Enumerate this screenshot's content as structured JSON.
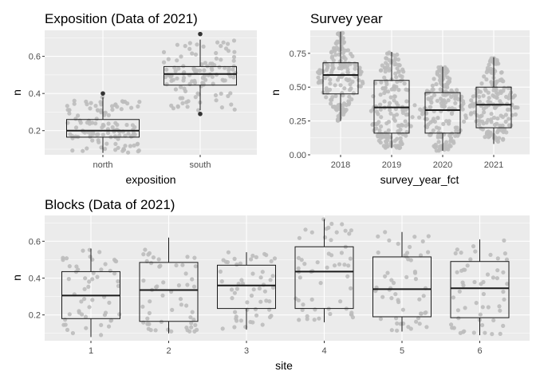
{
  "chart_data": [
    {
      "type": "boxplot",
      "title": "Exposition (Data of 2021)",
      "xlabel": "exposition",
      "ylabel": "n",
      "categories": [
        "north",
        "south"
      ],
      "ylim": [
        0.07,
        0.74
      ],
      "yticks": [
        0.2,
        0.4,
        0.6
      ],
      "yticklabels": [
        "0.2",
        "0.4",
        "0.6"
      ],
      "grid": true,
      "points": "jittered",
      "boxes": [
        {
          "category": "north",
          "min": 0.08,
          "q1": 0.165,
          "median": 0.2,
          "q3": 0.26,
          "max": 0.38,
          "outliers": [
            0.4
          ]
        },
        {
          "category": "south",
          "min": 0.31,
          "q1": 0.445,
          "median": 0.505,
          "q3": 0.545,
          "max": 0.69,
          "outliers": [
            0.29,
            0.72
          ]
        }
      ]
    },
    {
      "type": "violin-boxplot",
      "title": "Survey year",
      "xlabel": "survey_year_fct",
      "ylabel": "n",
      "categories": [
        "2018",
        "2019",
        "2020",
        "2021"
      ],
      "ylim": [
        0.0,
        0.92
      ],
      "yticks": [
        0.0,
        0.25,
        0.5,
        0.75
      ],
      "yticklabels": [
        "0.00",
        "0.25",
        "0.50",
        "0.75"
      ],
      "grid": true,
      "points": "beeswarm",
      "boxes": [
        {
          "category": "2018",
          "min": 0.25,
          "q1": 0.45,
          "median": 0.59,
          "q3": 0.68,
          "max": 0.91,
          "outliers": []
        },
        {
          "category": "2019",
          "min": 0.05,
          "q1": 0.16,
          "median": 0.35,
          "q3": 0.55,
          "max": 0.76,
          "outliers": []
        },
        {
          "category": "2020",
          "min": 0.03,
          "q1": 0.16,
          "median": 0.33,
          "q3": 0.46,
          "max": 0.65,
          "outliers": []
        },
        {
          "category": "2021",
          "min": 0.08,
          "q1": 0.2,
          "median": 0.37,
          "q3": 0.5,
          "max": 0.72,
          "outliers": []
        }
      ]
    },
    {
      "type": "boxplot",
      "title": "Blocks (Data of 2021)",
      "xlabel": "site",
      "ylabel": "n",
      "categories": [
        "1",
        "2",
        "3",
        "4",
        "5",
        "6"
      ],
      "ylim": [
        0.06,
        0.74
      ],
      "yticks": [
        0.2,
        0.4,
        0.6
      ],
      "yticklabels": [
        "0.2",
        "0.4",
        "0.6"
      ],
      "grid": true,
      "points": "jittered",
      "boxes": [
        {
          "category": "1",
          "min": 0.08,
          "q1": 0.18,
          "median": 0.305,
          "q3": 0.435,
          "max": 0.56,
          "outliers": []
        },
        {
          "category": "2",
          "min": 0.1,
          "q1": 0.165,
          "median": 0.335,
          "q3": 0.485,
          "max": 0.62,
          "outliers": []
        },
        {
          "category": "3",
          "min": 0.12,
          "q1": 0.235,
          "median": 0.36,
          "q3": 0.47,
          "max": 0.54,
          "outliers": []
        },
        {
          "category": "4",
          "min": 0.16,
          "q1": 0.235,
          "median": 0.435,
          "q3": 0.57,
          "max": 0.72,
          "outliers": []
        },
        {
          "category": "5",
          "min": 0.11,
          "q1": 0.19,
          "median": 0.34,
          "q3": 0.515,
          "max": 0.65,
          "outliers": []
        },
        {
          "category": "6",
          "min": 0.09,
          "q1": 0.185,
          "median": 0.345,
          "q3": 0.49,
          "max": 0.61,
          "outliers": []
        }
      ]
    }
  ],
  "colors": {
    "panel_background": "#ebebeb",
    "grid": "#ffffff",
    "points": "#bdbdbd",
    "box_stroke": "#1a1a1a",
    "outlier": "#333333"
  }
}
